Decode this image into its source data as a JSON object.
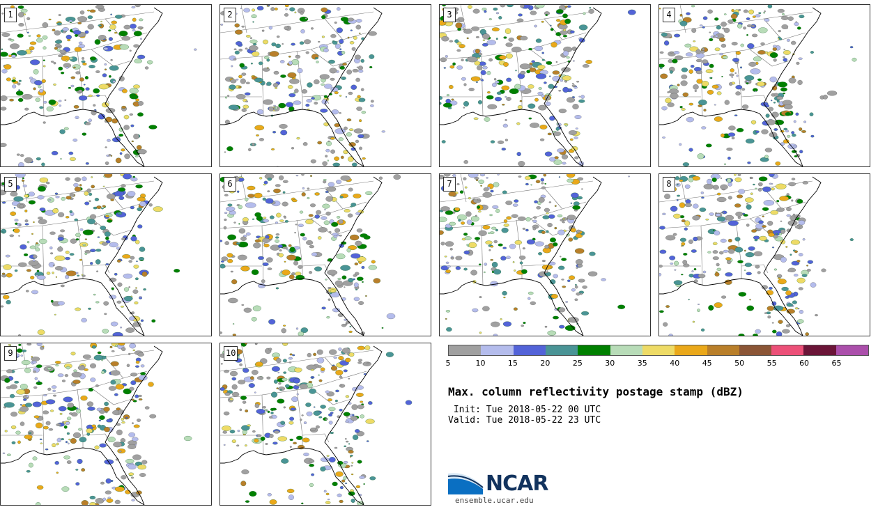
{
  "members": [
    {
      "label": "1"
    },
    {
      "label": "2"
    },
    {
      "label": "3"
    },
    {
      "label": "4"
    },
    {
      "label": "5"
    },
    {
      "label": "6"
    },
    {
      "label": "7"
    },
    {
      "label": "8"
    },
    {
      "label": "9"
    },
    {
      "label": "10"
    }
  ],
  "colorbar": {
    "unit": "dBZ",
    "ticks": [
      "5",
      "10",
      "15",
      "20",
      "25",
      "30",
      "35",
      "40",
      "45",
      "50",
      "55",
      "60",
      "65"
    ],
    "colors": [
      "#a0a0a0",
      "#b4bcec",
      "#5363d8",
      "#4a9496",
      "#008000",
      "#b8dcb8",
      "#eedb66",
      "#eaa81a",
      "#b97f2a",
      "#8b5536",
      "#ec5078",
      "#6b1538",
      "#ab4fab"
    ]
  },
  "title": "Max. column reflectivity postage stamp (dBZ)",
  "init": " Init: Tue 2018-05-22 00 UTC",
  "valid": "Valid: Tue 2018-05-22 23 UTC",
  "logo": {
    "text": "NCAR",
    "url": "ensemble.ucar.edu",
    "icon": "ncar-swoosh-icon"
  },
  "map": {
    "region": "southeastern-united-states",
    "state_lines": true,
    "coastline": true
  }
}
